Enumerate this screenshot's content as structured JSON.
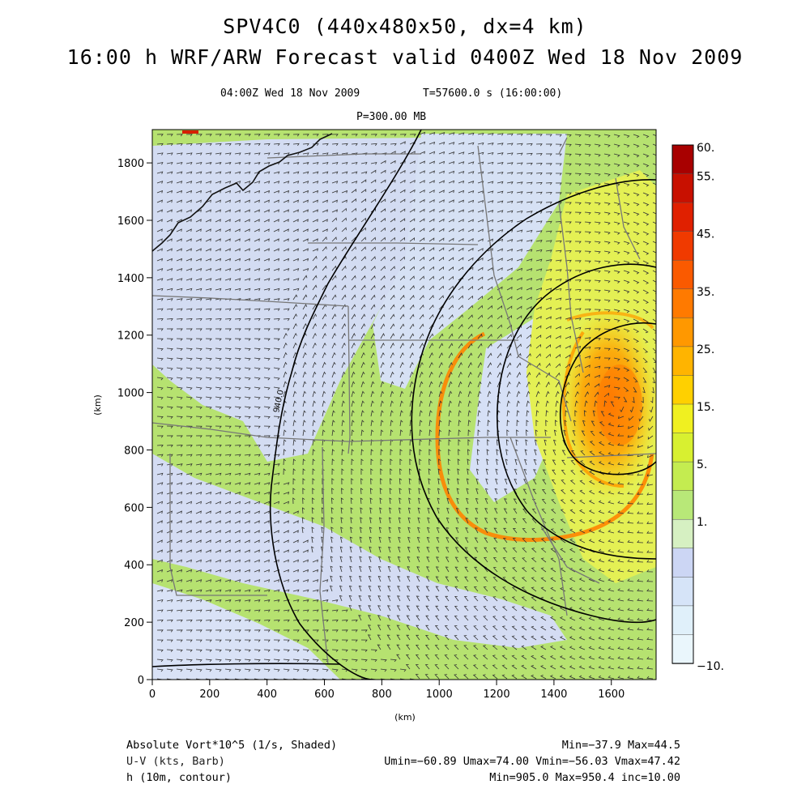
{
  "title_line1": "SPV4C0 (440x480x50, dx=4 km)",
  "title_line2": "16:00 h WRF/ARW Forecast valid 0400Z Wed 18 Nov 2009",
  "time_left": "04:00Z Wed 18 Nov 2009",
  "time_right": "T=57600.0 s (16:00:00)",
  "pressure_level": "P=300.00 MB",
  "axes": {
    "x_label": "(km)",
    "y_label": "(km)",
    "x_ticks": [
      "0",
      "200",
      "400",
      "600",
      "800",
      "1000",
      "1200",
      "1400",
      "1600"
    ],
    "y_ticks": [
      "0",
      "200",
      "400",
      "600",
      "800",
      "1000",
      "1200",
      "1400",
      "1600",
      "1800"
    ],
    "x_range": [
      0,
      1756
    ],
    "y_range": [
      0,
      1916
    ]
  },
  "colorbar": {
    "labels": [
      "60.",
      "55.",
      "45.",
      "35.",
      "25.",
      "15.",
      "5.",
      "1.",
      "−10."
    ],
    "colors": [
      "#a80000",
      "#c81000",
      "#e02000",
      "#f03a00",
      "#fa5a00",
      "#ff7a00",
      "#ff9800",
      "#ffb400",
      "#ffd000",
      "#f0f020",
      "#d8f030",
      "#c4ec50",
      "#b8e878",
      "#d6f0c2",
      "#ccd6f4",
      "#d6e4f8",
      "#e0f0fa",
      "#eaf6fc"
    ]
  },
  "contour_label": "940.0",
  "colors": {
    "borders": "#777777",
    "coast": "#111111",
    "contours": "#000000"
  },
  "footer": {
    "field1": "Absolute Vort*10^5 (1/s, Shaded)",
    "field2": "U-V (kts, Barb)",
    "field3": "h (10m, contour)",
    "stats1": "Min=−37.9 Max=44.5",
    "stats2": "Umin=−60.89 Umax=74.00 Vmin=−56.03 Vmax=47.42",
    "stats3": "Min=905.0 Max=950.4 inc=10.00"
  }
}
